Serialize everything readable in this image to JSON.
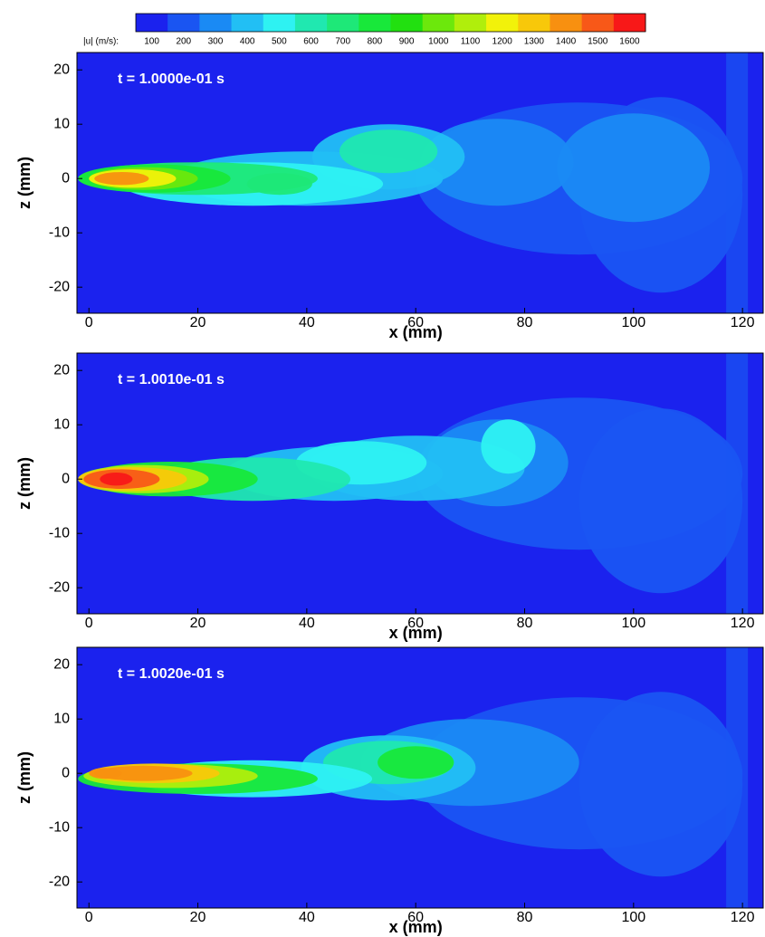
{
  "colorbar": {
    "label": "|u| (m/s):",
    "levels": [
      100,
      200,
      300,
      400,
      500,
      600,
      700,
      800,
      900,
      1000,
      1100,
      1200,
      1300,
      1400,
      1500,
      1600
    ],
    "colors": [
      "#1b22ee",
      "#1a55f2",
      "#1a8af4",
      "#22bff4",
      "#2ef2f2",
      "#20e8b0",
      "#1ee878",
      "#18e83a",
      "#22e010",
      "#6ce80c",
      "#b0ee0c",
      "#f2f20a",
      "#f8c80a",
      "#f89010",
      "#f85818",
      "#f81818"
    ]
  },
  "chart_data": [
    {
      "type": "contour",
      "annotation": "t = 1.0000e-01 s",
      "xlabel": "x (mm)",
      "ylabel": "z (mm)",
      "xlim": [
        -2.2,
        123.8
      ],
      "ylim": [
        -24.8,
        23.2
      ],
      "xticks": [
        0,
        20,
        40,
        60,
        80,
        100,
        120
      ],
      "yticks": [
        -20,
        -10,
        0,
        10,
        20
      ]
    },
    {
      "type": "contour",
      "annotation": "t = 1.0010e-01 s",
      "xlabel": "x (mm)",
      "ylabel": "z (mm)",
      "xlim": [
        -2.2,
        123.8
      ],
      "ylim": [
        -24.8,
        23.2
      ],
      "xticks": [
        0,
        20,
        40,
        60,
        80,
        100,
        120
      ],
      "yticks": [
        -20,
        -10,
        0,
        10,
        20
      ]
    },
    {
      "type": "contour",
      "annotation": "t = 1.0020e-01 s",
      "xlabel": "x (mm)",
      "ylabel": "z (mm)",
      "xlim": [
        -2.2,
        123.8
      ],
      "ylim": [
        -24.8,
        23.2
      ],
      "xticks": [
        0,
        20,
        40,
        60,
        80,
        100,
        120
      ],
      "yticks": [
        -20,
        -10,
        0,
        10,
        20
      ]
    }
  ]
}
